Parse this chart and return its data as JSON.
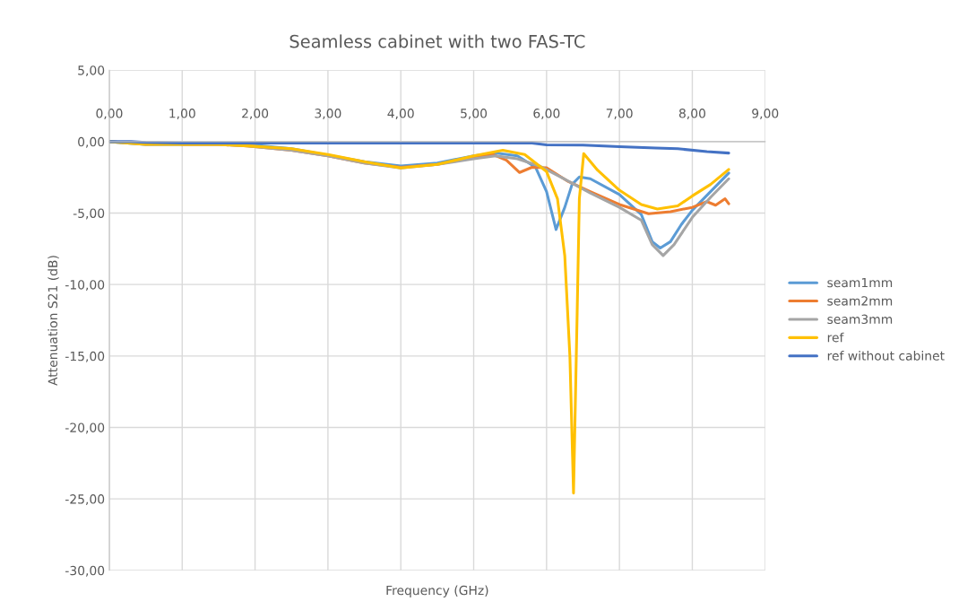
{
  "chart_data": {
    "type": "line",
    "title": "Seamless cabinet with two FAS-TC",
    "xlabel": "Frequency (GHz)",
    "ylabel": "Attenuation S21 (dB)",
    "xlim": [
      0,
      9
    ],
    "ylim": [
      -30,
      5
    ],
    "xticks": [
      {
        "value": 0,
        "label": "0,00"
      },
      {
        "value": 1,
        "label": "1,00"
      },
      {
        "value": 2,
        "label": "2,00"
      },
      {
        "value": 3,
        "label": "3,00"
      },
      {
        "value": 4,
        "label": "4,00"
      },
      {
        "value": 5,
        "label": "5,00"
      },
      {
        "value": 6,
        "label": "6,00"
      },
      {
        "value": 7,
        "label": "7,00"
      },
      {
        "value": 8,
        "label": "8,00"
      },
      {
        "value": 9,
        "label": "9,00"
      }
    ],
    "yticks": [
      {
        "value": 5,
        "label": "5,00"
      },
      {
        "value": 0,
        "label": "0,00"
      },
      {
        "value": -5,
        "label": "-5,00"
      },
      {
        "value": -10,
        "label": "-10,00"
      },
      {
        "value": -15,
        "label": "-15,00"
      },
      {
        "value": -20,
        "label": "-20,00"
      },
      {
        "value": -25,
        "label": "-25,00"
      },
      {
        "value": -30,
        "label": "-30,00"
      }
    ],
    "grid": true,
    "legend": "right",
    "marker": "none",
    "line_style": "solid",
    "series": [
      {
        "name": "seam1mm",
        "color": "#5b9bd5",
        "x": [
          0,
          0.5,
          1,
          1.5,
          1.9,
          2.5,
          3,
          3.5,
          4,
          4.5,
          5,
          5.3,
          5.6,
          5.85,
          6,
          6.13,
          6.25,
          6.35,
          6.45,
          6.6,
          7,
          7.3,
          7.45,
          7.56,
          7.7,
          7.85,
          8,
          8.25,
          8.5
        ],
        "values": [
          0,
          -0.2,
          -0.2,
          -0.2,
          -0.2,
          -0.5,
          -0.95,
          -1.4,
          -1.7,
          -1.5,
          -1.0,
          -0.8,
          -1.0,
          -1.8,
          -3.5,
          -6.15,
          -4.6,
          -3.0,
          -2.47,
          -2.6,
          -3.7,
          -5.1,
          -7.0,
          -7.45,
          -7.0,
          -5.8,
          -4.8,
          -3.5,
          -2.2
        ]
      },
      {
        "name": "seam2mm",
        "color": "#ed7d31",
        "x": [
          1,
          1.5,
          1.9,
          2.5,
          3,
          3.5,
          4,
          4.5,
          5,
          5.26,
          5.45,
          5.63,
          5.8,
          6,
          6.3,
          6.6,
          7,
          7.4,
          7.7,
          8,
          8.2,
          8.32,
          8.45,
          8.5
        ],
        "values": [
          -0.2,
          -0.2,
          -0.3,
          -0.6,
          -1.0,
          -1.5,
          -1.8,
          -1.6,
          -1.1,
          -0.9,
          -1.3,
          -2.16,
          -1.8,
          -1.83,
          -2.8,
          -3.5,
          -4.4,
          -5.05,
          -4.9,
          -4.6,
          -4.2,
          -4.45,
          -4.0,
          -4.35
        ]
      },
      {
        "name": "seam3mm",
        "color": "#a5a5a5",
        "x": [
          0,
          0.5,
          1,
          1.5,
          1.9,
          2.5,
          3,
          3.5,
          4,
          4.5,
          5,
          5.3,
          5.6,
          5.9,
          6.2,
          6.6,
          7,
          7.3,
          7.45,
          7.6,
          7.75,
          8,
          8.25,
          8.5
        ],
        "values": [
          0,
          -0.2,
          -0.2,
          -0.2,
          -0.3,
          -0.6,
          -1.0,
          -1.5,
          -1.85,
          -1.6,
          -1.2,
          -1.0,
          -1.2,
          -1.7,
          -2.5,
          -3.6,
          -4.6,
          -5.5,
          -7.2,
          -7.97,
          -7.2,
          -5.3,
          -3.9,
          -2.6
        ]
      },
      {
        "name": "ref",
        "color": "#ffc000",
        "x": [
          0,
          0.5,
          1,
          1.5,
          1.9,
          2.5,
          3,
          3.5,
          4,
          4.5,
          5,
          5.4,
          5.7,
          6,
          6.15,
          6.25,
          6.32,
          6.37,
          6.42,
          6.45,
          6.51,
          6.7,
          7,
          7.3,
          7.52,
          7.8,
          8,
          8.25,
          8.5
        ],
        "values": [
          0,
          -0.2,
          -0.2,
          -0.2,
          -0.3,
          -0.5,
          -0.9,
          -1.4,
          -1.85,
          -1.6,
          -1.0,
          -0.6,
          -0.9,
          -2.1,
          -4.0,
          -8.0,
          -15.0,
          -24.6,
          -12.0,
          -4.0,
          -0.84,
          -2.0,
          -3.4,
          -4.4,
          -4.72,
          -4.5,
          -3.8,
          -3.0,
          -1.95
        ]
      },
      {
        "name": "ref without cabinet",
        "color": "#4472c4",
        "x": [
          0,
          0.3,
          0.5,
          1,
          2,
          3,
          4,
          5,
          5.8,
          6,
          6.5,
          7,
          7.5,
          7.8,
          8.2,
          8.5
        ],
        "values": [
          0,
          0,
          -0.05,
          -0.1,
          -0.1,
          -0.1,
          -0.1,
          -0.1,
          -0.1,
          -0.23,
          -0.25,
          -0.35,
          -0.45,
          -0.5,
          -0.7,
          -0.8
        ]
      }
    ]
  }
}
